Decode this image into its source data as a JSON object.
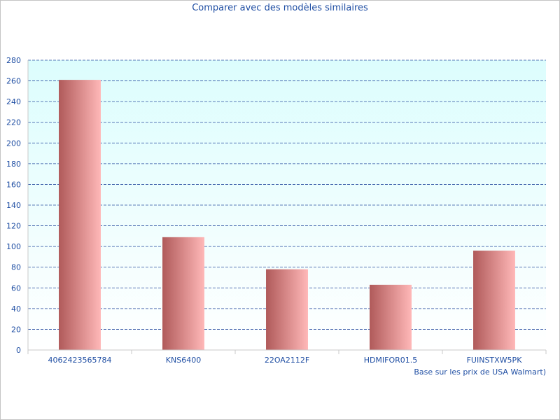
{
  "chart_data": {
    "type": "bar",
    "title": "Comparer avec des modèles similaires",
    "categories": [
      "4062423565784",
      "KNS6400",
      "22OA2112F",
      "HDMIFOR01.5",
      "FUINSTXW5PK"
    ],
    "values": [
      261,
      109,
      78,
      63,
      96
    ],
    "xlabel": "Base sur les prix de USA Walmart)",
    "ylabel": "",
    "ylim": [
      0,
      280
    ],
    "yticks": [
      0,
      20,
      40,
      60,
      80,
      100,
      120,
      140,
      160,
      180,
      200,
      220,
      240,
      260,
      280
    ],
    "grid": true,
    "legend": "none",
    "colors": {
      "bar_dark": "#b05a5a",
      "bar_light": "#ffb8b8",
      "plot_bg_top": "#dcfdfd",
      "plot_bg_bottom": "#ffffff",
      "grid": "#2a4ea0",
      "text": "#1f4ea3"
    }
  }
}
